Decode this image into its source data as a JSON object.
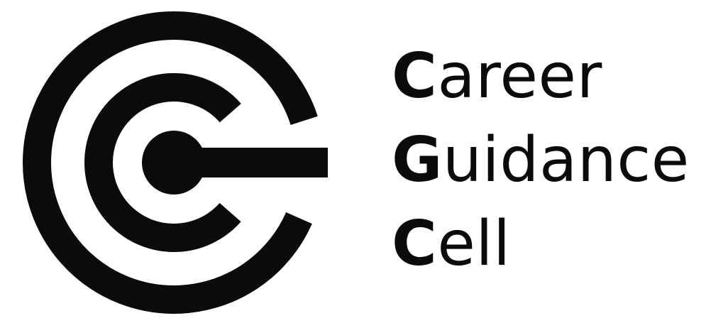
{
  "logo": {
    "icon": "concentric-g-c-logo-icon",
    "color": "#0d0b09",
    "background": "#ffffff"
  },
  "wordmark": {
    "words": [
      {
        "initial": "C",
        "rest": "areer"
      },
      {
        "initial": "G",
        "rest": "uidance"
      },
      {
        "initial": "C",
        "rest": "ell"
      }
    ]
  }
}
